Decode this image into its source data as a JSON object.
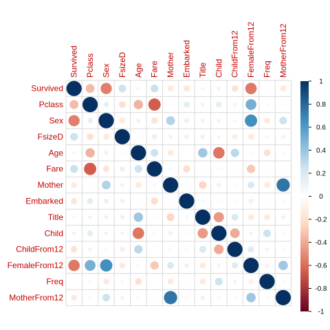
{
  "chart_data": {
    "type": "heatmap",
    "subtype": "correlation-circles",
    "variables": [
      "Survived",
      "Pclass",
      "Sex",
      "FsizeD",
      "Age",
      "Fare",
      "Mother",
      "Embarked",
      "Title",
      "Child",
      "ChildFrom12",
      "FemaleFrom12",
      "Freq",
      "MotherFrom12"
    ],
    "matrix": [
      [
        1.0,
        -0.34,
        -0.54,
        0.25,
        -0.07,
        0.26,
        -0.15,
        -0.17,
        -0.07,
        0.08,
        -0.19,
        -0.56,
        0.02,
        -0.15
      ],
      [
        -0.34,
        1.0,
        0.13,
        -0.2,
        -0.37,
        -0.65,
        0.03,
        0.16,
        -0.08,
        0.15,
        0.08,
        0.5,
        0.05,
        0.04
      ],
      [
        -0.54,
        0.13,
        1.0,
        -0.15,
        0.09,
        -0.18,
        0.33,
        0.11,
        0.09,
        0.08,
        -0.06,
        0.65,
        -0.15,
        0.25
      ],
      [
        0.25,
        -0.2,
        -0.15,
        1.0,
        -0.04,
        0.12,
        0.08,
        -0.1,
        0.1,
        0.07,
        -0.12,
        -0.15,
        -0.07,
        0.08
      ],
      [
        -0.07,
        -0.37,
        0.09,
        -0.04,
        1.0,
        0.25,
        -0.15,
        -0.03,
        0.38,
        -0.57,
        0.3,
        -0.05,
        -0.2,
        -0.05
      ],
      [
        0.26,
        -0.65,
        -0.18,
        0.12,
        0.25,
        1.0,
        0.06,
        -0.22,
        0.04,
        -0.05,
        -0.02,
        -0.3,
        0.02,
        0.03
      ],
      [
        -0.15,
        0.03,
        0.33,
        0.08,
        -0.15,
        0.06,
        1.0,
        0.03,
        -0.25,
        -0.1,
        -0.05,
        0.2,
        -0.15,
        0.75
      ],
      [
        -0.17,
        0.16,
        0.11,
        -0.1,
        -0.03,
        -0.22,
        0.03,
        1.0,
        0.06,
        -0.04,
        0.05,
        0.1,
        -0.03,
        -0.05
      ],
      [
        -0.07,
        -0.08,
        0.09,
        0.1,
        0.38,
        0.04,
        -0.25,
        0.06,
        1.0,
        -0.45,
        0.2,
        -0.15,
        -0.15,
        -0.1
      ],
      [
        0.08,
        0.15,
        0.08,
        0.07,
        -0.57,
        -0.05,
        -0.1,
        -0.04,
        -0.45,
        1.0,
        -0.4,
        0.08,
        0.25,
        0.05
      ],
      [
        -0.19,
        0.08,
        -0.06,
        -0.12,
        0.3,
        -0.02,
        -0.05,
        0.05,
        0.2,
        -0.4,
        1.0,
        0.17,
        -0.08,
        -0.05
      ],
      [
        -0.56,
        0.5,
        0.65,
        -0.15,
        -0.05,
        -0.3,
        0.2,
        0.1,
        -0.15,
        0.08,
        0.17,
        1.0,
        -0.1,
        0.38
      ],
      [
        0.02,
        0.05,
        -0.15,
        -0.07,
        -0.2,
        0.02,
        -0.15,
        -0.03,
        -0.15,
        0.25,
        -0.08,
        -0.1,
        1.0,
        -0.05
      ],
      [
        -0.15,
        0.04,
        0.25,
        0.08,
        -0.05,
        0.03,
        0.75,
        -0.05,
        -0.1,
        0.05,
        -0.05,
        0.38,
        -0.05,
        1.0
      ]
    ],
    "colorbar": {
      "ticks": [
        "1",
        "0.8",
        "0.6",
        "0.4",
        "0.2",
        "0",
        "-0.2",
        "-0.4",
        "-0.6",
        "-0.8",
        "-1"
      ],
      "range": [
        -1,
        1
      ]
    },
    "colors": {
      "neg_strong": "#67001f",
      "neg_mid": "#d6604d",
      "neg_light": "#fddbc7",
      "neutral": "#ffffff",
      "pos_light": "#d1e5f0",
      "pos_mid": "#4393c3",
      "pos_strong": "#053061",
      "label": "#c40000",
      "grid": "#d9d9d9"
    }
  }
}
